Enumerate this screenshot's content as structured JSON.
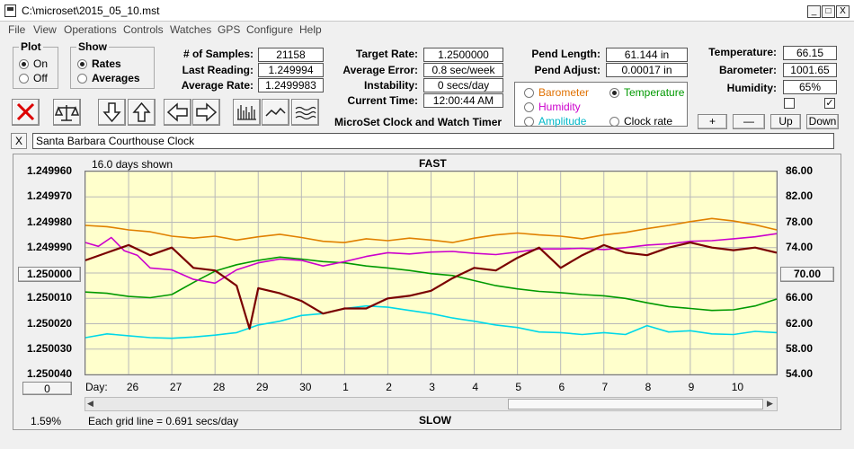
{
  "window": {
    "title": "C:\\microset\\2015_05_10.mst",
    "min": "_",
    "max": "□",
    "close": "X"
  },
  "menu": [
    "File",
    "View",
    "Operations",
    "Controls",
    "Watches",
    "GPS",
    "Configure",
    "Help"
  ],
  "plot_group": {
    "legend": "Plot",
    "options": [
      {
        "label": "On",
        "selected": true
      },
      {
        "label": "Off",
        "selected": false
      }
    ]
  },
  "show_group": {
    "legend": "Show",
    "options": [
      {
        "label": "Rates",
        "selected": true
      },
      {
        "label": "Averages",
        "selected": false
      }
    ]
  },
  "stats": {
    "samples_label": "# of Samples:",
    "samples": "21158",
    "last_label": "Last Reading:",
    "last": "1.249994",
    "avg_label": "Average Rate:",
    "avg": "1.2499983",
    "target_label": "Target Rate:",
    "target": "1.2500000",
    "avgerr_label": "Average Error:",
    "avgerr": "0.8 sec/week",
    "instab_label": "Instability:",
    "instab": "0 secs/day",
    "time_label": "Current Time:",
    "time": "12:00:44 AM",
    "app_name": "MicroSet Clock and Watch Timer",
    "pendlen_label": "Pend Length:",
    "pendlen": "61.144 in",
    "pendadj_label": "Pend Adjust:",
    "pendadj": "0.00017 in",
    "temp_label": "Temperature:",
    "temp": "66.15",
    "baro_label": "Barometer:",
    "baro": "1001.65",
    "hum_label": "Humidity:",
    "hum": "65%"
  },
  "aux_options": [
    {
      "label": "Barometer",
      "color": "#e07000",
      "selected": false
    },
    {
      "label": "Temperature",
      "color": "#009900",
      "selected": true
    },
    {
      "label": "Humidity",
      "color": "#cc00cc",
      "selected": false
    },
    {
      "label": "Clock rate",
      "color": "#000000",
      "selected": false
    },
    {
      "label": "Amplitude",
      "color": "#00bfbf",
      "selected": false
    }
  ],
  "aux_buttons": [
    "+",
    "—",
    "Up",
    "Down"
  ],
  "checkboxes": [
    {
      "checked": false
    },
    {
      "checked": true
    }
  ],
  "toolbar_icons": [
    "clear-icon",
    "scale-icon",
    "down-arrow-icon",
    "up-arrow-icon",
    "left-arrow-icon",
    "right-arrow-icon",
    "bars-icon",
    "line-icon",
    "wave-icon"
  ],
  "watch_name": "Santa Barbara Courthouse Clock",
  "watch_close": "X",
  "chart_data": {
    "type": "line",
    "title": "FAST",
    "bottom_title": "SLOW",
    "days_shown": "16.0 days shown",
    "grid_note": "Each grid line = 0.691 secs/day",
    "percent": "1.59%",
    "left_button": "1.250000",
    "right_button": "70.00",
    "bottom_button": "0",
    "x_label": "Day:",
    "x_ticks": [
      "26",
      "27",
      "28",
      "29",
      "30",
      "1",
      "2",
      "3",
      "4",
      "5",
      "6",
      "7",
      "8",
      "9",
      "10"
    ],
    "y_left_ticks": [
      "1.249960",
      "1.249970",
      "1.249980",
      "1.249990",
      "1.250000",
      "1.250010",
      "1.250020",
      "1.250030",
      "1.250040"
    ],
    "y_left_range": [
      1.24996,
      1.25004
    ],
    "y_right_ticks": [
      "86.00",
      "82.00",
      "78.00",
      "74.00",
      "70.00",
      "66.00",
      "62.00",
      "58.00",
      "54.00"
    ],
    "y_right_range": [
      54,
      86
    ],
    "grid": true,
    "x_range": [
      0,
      16.0
    ],
    "series": [
      {
        "name": "Barometer",
        "color": "#e08000",
        "x": [
          0,
          0.5,
          1,
          1.5,
          2,
          2.5,
          3,
          3.5,
          4,
          4.5,
          5,
          5.5,
          6,
          6.5,
          7,
          7.5,
          8,
          8.5,
          9,
          9.5,
          10,
          10.5,
          11,
          11.5,
          12,
          12.5,
          13,
          13.5,
          14,
          14.5,
          15,
          15.5,
          16
        ],
        "y": [
          77.5,
          77.3,
          76.8,
          76.5,
          75.8,
          75.5,
          75.8,
          75.2,
          75.7,
          76.1,
          75.6,
          75.0,
          74.8,
          75.4,
          75.1,
          75.5,
          75.2,
          74.8,
          75.5,
          76.0,
          76.3,
          76.0,
          75.8,
          75.4,
          76.0,
          76.4,
          77.0,
          77.5,
          78.1,
          78.6,
          78.2,
          77.6,
          76.8
        ]
      },
      {
        "name": "Temperature",
        "color": "#009900",
        "x": [
          0,
          0.5,
          1,
          1.5,
          2,
          2.5,
          3,
          3.5,
          4,
          4.5,
          5,
          5.5,
          6,
          6.5,
          7,
          7.5,
          8,
          8.5,
          9,
          9.5,
          10,
          10.5,
          11,
          11.5,
          12,
          12.5,
          13,
          13.5,
          14,
          14.5,
          15,
          15.5,
          16
        ],
        "y": [
          67.0,
          66.8,
          66.3,
          66.1,
          66.6,
          68.5,
          70.3,
          71.3,
          72.0,
          72.5,
          72.2,
          71.8,
          71.6,
          71.1,
          70.8,
          70.4,
          69.9,
          69.6,
          68.8,
          68.0,
          67.5,
          67.1,
          66.9,
          66.6,
          66.4,
          66.0,
          65.3,
          64.7,
          64.4,
          64.1,
          64.2,
          64.8,
          65.9
        ]
      },
      {
        "name": "Humidity",
        "color": "#cc00cc",
        "x": [
          0,
          0.3,
          0.6,
          0.9,
          1.2,
          1.5,
          2,
          2.5,
          3,
          3.5,
          4,
          4.5,
          5,
          5.5,
          6,
          6.5,
          7,
          7.5,
          8,
          8.5,
          9,
          9.5,
          10,
          10.5,
          11,
          11.5,
          12,
          12.5,
          13,
          13.5,
          14,
          14.5,
          15,
          15.5,
          16
        ],
        "y": [
          74.8,
          74.2,
          75.6,
          73.5,
          72.8,
          70.8,
          70.5,
          69.0,
          68.4,
          70.5,
          71.6,
          72.2,
          72.0,
          71.1,
          71.8,
          72.6,
          73.2,
          73.0,
          73.3,
          73.4,
          73.1,
          72.9,
          73.3,
          73.8,
          73.8,
          73.9,
          73.7,
          74.0,
          74.4,
          74.6,
          75.0,
          75.1,
          75.4,
          75.7,
          76.2
        ]
      },
      {
        "name": "Amplitude",
        "color": "#00d8e8",
        "x": [
          0,
          0.5,
          1,
          1.5,
          2,
          2.5,
          3,
          3.5,
          4,
          4.5,
          5,
          5.5,
          6,
          6.5,
          7,
          7.5,
          8,
          8.5,
          9,
          9.5,
          10,
          10.5,
          11,
          11.5,
          12,
          12.5,
          13,
          13.5,
          14,
          14.5,
          15,
          15.5,
          16
        ],
        "y": [
          59.8,
          60.4,
          60.1,
          59.8,
          59.7,
          59.9,
          60.2,
          60.6,
          61.8,
          62.4,
          63.3,
          63.6,
          64.4,
          64.8,
          64.6,
          64.1,
          63.6,
          62.9,
          62.4,
          61.8,
          61.4,
          60.7,
          60.6,
          60.3,
          60.6,
          60.3,
          61.7,
          60.7,
          60.9,
          60.4,
          60.3,
          60.8,
          60.6
        ]
      },
      {
        "name": "Clock rate",
        "color": "#7a0000",
        "axis": "left",
        "x": [
          0,
          0.5,
          1,
          1.5,
          2,
          2.5,
          3,
          3.5,
          3.8,
          4,
          4.5,
          5,
          5.5,
          6,
          6.5,
          7,
          7.5,
          8,
          8.5,
          9,
          9.5,
          10,
          10.5,
          11,
          11.5,
          12,
          12.5,
          13,
          13.5,
          14,
          14.5,
          15,
          15.5,
          16
        ],
        "y": [
          1.249995,
          1.249992,
          1.249989,
          1.249993,
          1.24999,
          1.249998,
          1.249999,
          1.250005,
          1.250022,
          1.250006,
          1.250008,
          1.250011,
          1.250016,
          1.250014,
          1.250014,
          1.25001,
          1.250009,
          1.250007,
          1.250002,
          1.249998,
          1.249999,
          1.249994,
          1.24999,
          1.249998,
          1.249993,
          1.249989,
          1.249992,
          1.249993,
          1.24999,
          1.249988,
          1.24999,
          1.249991,
          1.24999,
          1.249992
        ]
      }
    ]
  }
}
